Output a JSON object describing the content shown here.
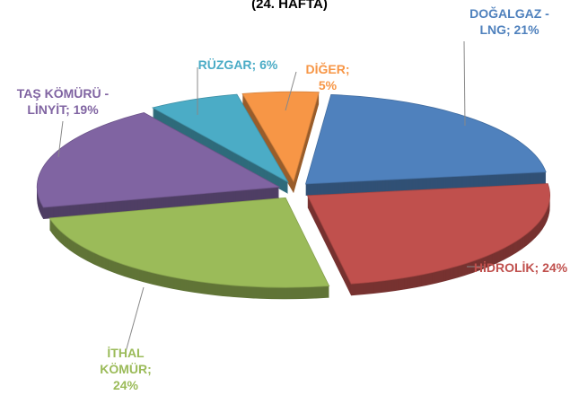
{
  "chart_data": {
    "type": "pie",
    "title": "(24. HAFTA)",
    "values": [
      21,
      24,
      24,
      19,
      6,
      5
    ],
    "value_labels": [
      "DOĞALGAZ - LNG; 21%",
      "HİDROLİK; 24%",
      "İTHAL KÖMÜR; 24%",
      "TAŞ KÖMÜRÜ - LİNYİT; 19%",
      "RÜZGAR; 6%",
      "DİĞER; 5%"
    ],
    "colors": [
      "#4f81bd",
      "#c0504d",
      "#9bbb59",
      "#8064a2",
      "#4bacc6",
      "#f79646"
    ]
  }
}
